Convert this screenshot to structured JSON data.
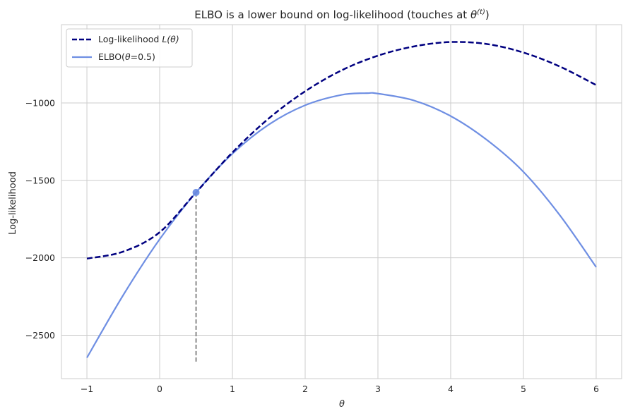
{
  "chart_data": {
    "type": "line",
    "title_main": "ELBO is a lower bound on log-likelihood (touches at ",
    "title_theta": "θ",
    "title_sup": "(t)",
    "title_close": ")",
    "xlabel": "θ",
    "ylabel": "Log-likelihood",
    "xlim": [
      -1.35,
      6.35
    ],
    "ylim": [
      -2780,
      -495
    ],
    "xticks": [
      -1,
      0,
      1,
      2,
      3,
      4,
      5,
      6
    ],
    "yticks": [
      -2500,
      -2000,
      -1500,
      -1000
    ],
    "grid": true,
    "legend_position": "top-left",
    "series": [
      {
        "name": "Log-likelihood L(θ)",
        "legend_prefix": "Log-likelihood ",
        "legend_math": "L(θ)",
        "color": "#000080",
        "style": "dashed",
        "x": [
          -1.0,
          -0.5,
          0.0,
          0.5,
          1.0,
          1.5,
          2.0,
          2.5,
          3.0,
          3.5,
          4.0,
          4.5,
          5.0,
          5.5,
          6.0
        ],
        "y": [
          -2005,
          -1960,
          -1835,
          -1578,
          -1320,
          -1100,
          -925,
          -790,
          -695,
          -635,
          -607,
          -620,
          -675,
          -765,
          -885
        ]
      },
      {
        "name": "ELBO(θ=0.5)",
        "legend_prefix": "ELBO(",
        "legend_math": "θ",
        "legend_suffix": "=0.5)",
        "color": "#6f8fe3",
        "style": "solid",
        "x": [
          -1.0,
          -0.5,
          0.0,
          0.5,
          1.0,
          1.5,
          2.0,
          2.5,
          2.85,
          3.0,
          3.5,
          4.0,
          4.5,
          5.0,
          5.5,
          6.0
        ],
        "y": [
          -2645,
          -2240,
          -1880,
          -1578,
          -1328,
          -1140,
          -1015,
          -948,
          -937,
          -940,
          -985,
          -1085,
          -1240,
          -1445,
          -1725,
          -2060
        ]
      }
    ],
    "marker": {
      "x": 0.5,
      "y": -1578,
      "color": "#6f8fe3"
    },
    "vline": {
      "x": 0.5,
      "y_from": -2670,
      "y_to": -1578,
      "color": "#6b6b6b"
    }
  }
}
